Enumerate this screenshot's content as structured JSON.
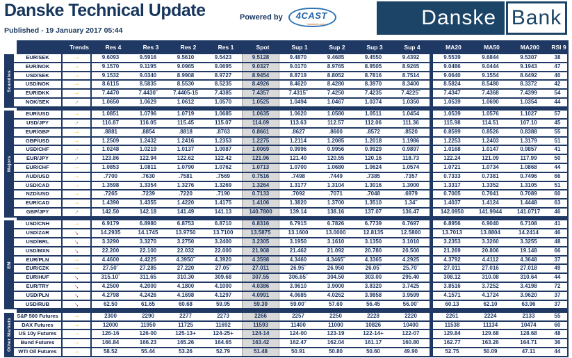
{
  "header": {
    "title": "Danske Technical Update",
    "powered_by": "Powered by",
    "powered_logo": "4CAST",
    "powered_logo_sub": "4castweb.com",
    "published": "Published - 19 January 2017 05:44",
    "logo_left": "Danske",
    "logo_right": "Bank"
  },
  "colors": {
    "navy": "#1F3864",
    "logo_navy": "#1C4467",
    "spot_bg": "#D9D9D9",
    "trend_neutral": "#FFC000",
    "trend_up": "#4EA72E",
    "trend_down": "#C00000"
  },
  "table": {
    "columns": [
      "Trends",
      "Res 4",
      "Res 3",
      "Res 2",
      "Res 1",
      "Spot",
      "Sup 1",
      "Sup 2",
      "Sup 3",
      "Sup 4",
      "MA20",
      "MA50",
      "MA200",
      "RSI 9"
    ],
    "sections": [
      {
        "label": "Scandies",
        "rows": [
          {
            "name": "EUR/SEK",
            "trend": "neutral",
            "values": [
              "9.6093",
              "9.5916",
              "9.5610",
              "9.5423",
              "9.5128",
              "9.4870",
              "9.4685",
              "9.4550",
              "9.4392",
              "9.5539",
              "9.6844",
              "9.5307",
              "38"
            ]
          },
          {
            "name": "EUR/NOK",
            "trend": "neutral",
            "values": [
              "9.1570",
              "9.1195",
              "9.0965",
              "9.0695",
              "9.0327",
              "9.0170",
              "8.9765",
              "8.9505",
              "8.9265",
              "9.0486",
              "9.0444",
              "9.1943",
              "47"
            ]
          },
          {
            "name": "USD/SEK",
            "trend": "neutral",
            "values": [
              "9.1532",
              "9.0340",
              "8.9908",
              "8.9727",
              "8.9454",
              "8.8719",
              "8.8052",
              "8.7816",
              "8.7514",
              "9.0640",
              "9.1554",
              "8.6492",
              "40"
            ]
          },
          {
            "name": "USD/NOK",
            "trend": "neutral",
            "values": [
              "8.6115",
              "8.5835",
              "8.5530",
              "8.5235",
              "8.4926",
              "8.4620",
              "8.4280",
              "8.3970",
              "8.3400",
              "8.5824",
              "8.5480",
              "8.3372",
              "42"
            ]
          },
          {
            "name": "EUR/DKK",
            "trend": "neutral",
            "values": [
              "7.4470",
              "7.4430˜",
              "7.4405-15",
              "7.4385",
              "7.4357",
              "7.4315˜",
              "7.4250",
              "7.4235",
              "7.4225˜",
              "7.4347",
              "7.4368",
              "7.4399",
              "54"
            ]
          },
          {
            "name": "NOK/SEK",
            "trend": "up",
            "values": [
              "1.0650",
              "1.0629",
              "1.0612",
              "1.0570",
              "1.0525",
              "1.0494",
              "1.0467",
              "1.0374",
              "1.0350",
              "1.0539",
              "1.0690",
              "1.0354",
              "44"
            ]
          }
        ]
      },
      {
        "label": "Majors",
        "rows": [
          {
            "name": "EUR/USD",
            "trend": "neutral",
            "values": [
              "1.0851",
              "1.0796",
              "1.0719",
              "1.0685",
              "1.0635",
              "1.0620",
              "1.0580",
              "1.0511",
              "1.0454",
              "1.0539",
              "1.0576",
              "1.1027",
              "57"
            ]
          },
          {
            "name": "USD/JPY",
            "trend": "up",
            "values": [
              "116.87",
              "116.05",
              "115.45",
              "115.07",
              "114.69",
              "113.63",
              "112.57",
              "112.06",
              "111.36",
              "115.98",
              "114.51",
              "107.10",
              "45"
            ]
          },
          {
            "name": "EUR/GBP",
            "trend": "neutral",
            "values": [
              ".8881",
              ".8854",
              ".8818",
              ".8763",
              "0.8661",
              ".8627",
              ".8600",
              ".8572",
              ".8520",
              "0.8599",
              "0.8526",
              "0.8388",
              "55"
            ]
          },
          {
            "name": "GBP/USD",
            "trend": "neutral",
            "values": [
              "1.2509",
              "1.2432",
              "1.2416",
              "1.2353",
              "1.2275",
              "1.2114",
              "1.2085",
              "1.2018",
              "1.1986",
              "1.2253",
              "1.2403",
              "1.3179",
              "51"
            ]
          },
          {
            "name": "USD/CHF",
            "trend": "neutral",
            "values": [
              "1.0248",
              "1.0219",
              "1.0137",
              "1.0087",
              "1.0069",
              "0.9996",
              "0.9956",
              "0.9929",
              "0.9897",
              "1.0168",
              "1.0147",
              "0.9857",
              "41"
            ]
          },
          {
            "name": "EUR/JPY",
            "trend": "up",
            "values": [
              "123.86",
              "122.94",
              "122.62",
              "122.42",
              "121.96",
              "121.40",
              "120.55",
              "120.16",
              "118.73",
              "122.24",
              "121.09",
              "117.99",
              "50"
            ]
          },
          {
            "name": "EUR/CHF",
            "trend": "neutral",
            "values": [
              "1.0853",
              "1.0811",
              "1.0790",
              "1.0762",
              "1.0713",
              "1.0700",
              "1.0680",
              "1.0624",
              "1.0574",
              "1.0721",
              "1.0734",
              "1.0868",
              "44"
            ]
          },
          {
            "name": "AUD/USD",
            "trend": "neutral",
            "values": [
              ".7700",
              ".7630",
              ".7581",
              ".7569",
              "0.7516",
              ".7498",
              ".7449",
              ".7385",
              ".7357",
              "0.7333",
              "0.7381",
              "0.7496",
              "66"
            ]
          },
          {
            "name": "USD/CAD",
            "trend": "neutral",
            "values": [
              "1.3598",
              "1.3354",
              "1.3276",
              "1.3269",
              "1.3264",
              "1.3177",
              "1.3104",
              "1.3016",
              "1.3000",
              "1.3317",
              "1.3352",
              "1.3105",
              "51"
            ]
          },
          {
            "name": "NZD/USD",
            "trend": "neutral",
            "values": [
              ".7265",
              ".7239",
              ".7220",
              ".7190",
              "0.7133",
              ".7092",
              ".7071",
              ".7048",
              ".6979",
              "0.7005",
              "0.7041",
              "0.7089",
              "60"
            ]
          },
          {
            "name": "EUR/CAD",
            "trend": "neutral",
            "values": [
              "1.4390",
              "1.4355",
              "1.4220",
              "1.4175",
              "1.4106",
              "1.3820",
              "1.3700",
              "1.3510",
              "1.34˜",
              "1.4037",
              "1.4124",
              "1.4448",
              "63"
            ]
          },
          {
            "name": "GBP/JPY",
            "trend": "up",
            "values": [
              "142.50",
              "142.18",
              "141.49",
              "141.13",
              "140.7800",
              "139.14",
              "138.16",
              "137.07",
              "136.47",
              "142.0950",
              "141.9944",
              "141.0717",
              "46"
            ]
          }
        ]
      },
      {
        "label": "EM",
        "rows": [
          {
            "name": "USD/CNH",
            "trend": "neutral",
            "values": [
              "6.9179",
              "6.8980",
              "6.8753",
              "6.8710",
              "6.8316",
              "6.7915",
              "6.7826",
              "6.7739",
              "6.7697",
              "6.8956",
              "6.9040",
              "6.7108",
              "41"
            ]
          },
          {
            "name": "USD/ZAR",
            "trend": "down",
            "values": [
              "14.2935",
              "14.1745",
              "13.9750",
              "13.7100",
              "13.5875",
              "13.1600",
              "13.0000",
              "12.8135",
              "12.5800",
              "13.7013",
              "13.8804",
              "14.2414",
              "46"
            ]
          },
          {
            "name": "USD/BRL",
            "trend": "down",
            "values": [
              "3.3290",
              "3.3270",
              "3.2750",
              "3.2400",
              "3.2305",
              "3.1950",
              "3.1610",
              "3.1350",
              "3.1010",
              "3.2353",
              "3.3260",
              "3.3255",
              "48"
            ]
          },
          {
            "name": "USD/MXN",
            "trend": "down",
            "values": [
              "22.200",
              "22.100",
              "22.032",
              "22.000",
              "21.908",
              "21.462",
              "21.092",
              "20.780",
              "20.500",
              "21.269",
              "20.806",
              "19.148",
              "66"
            ]
          },
          {
            "name": "EUR/PLN",
            "trend": "neutral",
            "values": [
              "4.4600",
              "4.4225",
              "4.3950˜",
              "4.3920",
              "4.3598",
              "4.3460",
              "4.3465˜",
              "4.3365",
              "4.2925",
              "4.3792",
              "4.4112",
              "4.3648",
              "37"
            ]
          },
          {
            "name": "EUR/CZK",
            "trend": "neutral",
            "values": [
              "27.50˜",
              "27.285",
              "27.220",
              "27.05˜",
              "27.011",
              "26.95˜",
              "26.950",
              "26.05˜",
              "25.70˜",
              "27.011",
              "27.016",
              "27.018",
              "49"
            ]
          },
          {
            "name": "EUR/HUF",
            "trend": "down",
            "values": [
              "315.10˜",
              "311.65",
              "310.30",
              "309.68",
              "307.55",
              "306.65˜",
              "304.50",
              "303.00",
              "295.40",
              "308.12",
              "310.08",
              "310.64",
              "44"
            ]
          },
          {
            "name": "EUR/TRY",
            "trend": "down",
            "values": [
              "4.2500",
              "4.2000",
              "4.1800",
              "4.1000",
              "4.0386",
              "3.9610",
              "3.9000",
              "3.8320",
              "3.7425",
              "3.8516",
              "3.7252",
              "3.4198",
              "72"
            ]
          },
          {
            "name": "USD/PLN",
            "trend": "down",
            "values": [
              "4.2798",
              "4.2426",
              "4.1698",
              "4.1297",
              "4.0991",
              "4.0685",
              "4.0262",
              "3.9858",
              "3.9599",
              "4.1571",
              "4.1724",
              "3.9620",
              "37"
            ]
          },
          {
            "name": "USD/RUB",
            "trend": "down",
            "values": [
              "62.50",
              "61.65",
              "60.68",
              "59.95",
              "59.39",
              "59.00˜",
              "57.60",
              "56.45",
              "56.00˜",
              "60.13",
              "62.10",
              "63.96",
              "37"
            ]
          }
        ]
      },
      {
        "label": "Other Markets",
        "rows": [
          {
            "name": "S&P 500 Futures",
            "trend": "neutral",
            "values": [
              "2300",
              "2290",
              "2277",
              "2273",
              "2266",
              "2257",
              "2250",
              "2228",
              "2220",
              "2261",
              "2224",
              "2133",
              "55"
            ]
          },
          {
            "name": "DAX Futures",
            "trend": "neutral",
            "values": [
              "12000",
              "11950",
              "11725",
              "11692",
              "11593",
              "11400",
              "11000",
              "10826",
              "10400",
              "11538",
              "11134",
              "10474",
              "60"
            ]
          },
          {
            "name": "US 10y Futures",
            "trend": "neutral",
            "values": [
              "126-16",
              "126-00",
              "125-13+",
              "124-25+",
              "124-14",
              "124-00",
              "123-19",
              "122-14+",
              "122-07",
              "129.84",
              "129.68",
              "128.68",
              "48"
            ]
          },
          {
            "name": "Bund Futures",
            "trend": "neutral",
            "values": [
              "166.84",
              "166.23",
              "165.26",
              "164.65",
              "163.42",
              "162.47",
              "162.04",
              "161.17",
              "160.80",
              "162.77",
              "163.26",
              "164.71",
              "36"
            ]
          },
          {
            "name": "WTI Oil Futures",
            "trend": "neutral",
            "values": [
              "58.52",
              "55.44",
              "53.26",
              "52.79",
              "51.48",
              "50.91",
              "50.80",
              "50.60",
              "49.90",
              "52.75",
              "50.09",
              "47.11",
              "44"
            ]
          }
        ]
      }
    ]
  }
}
